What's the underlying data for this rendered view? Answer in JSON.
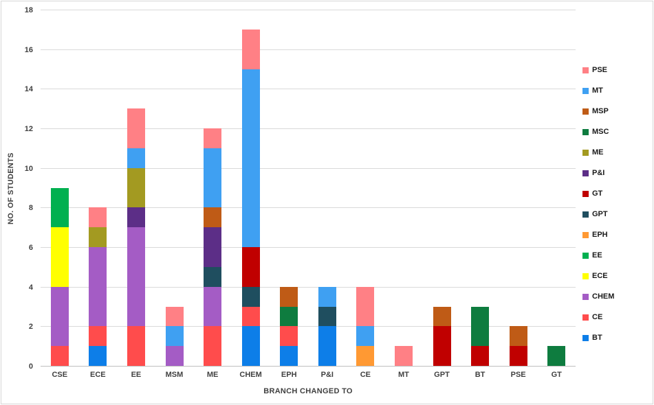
{
  "chart_data": {
    "type": "bar",
    "stacked": true,
    "title": "",
    "xlabel": "BRANCH CHANGED TO",
    "ylabel": "NO. OF STUDENTS",
    "ylim": [
      0,
      18
    ],
    "y_ticks": [
      0,
      2,
      4,
      6,
      8,
      10,
      12,
      14,
      16,
      18
    ],
    "grid": true,
    "legend_position": "right",
    "legend_top_to_bottom": [
      "PSE",
      "MT",
      "MSP",
      "MSC",
      "ME",
      "P&I",
      "GT",
      "GPT",
      "EPH",
      "EE",
      "ECE",
      "CHEM",
      "CE",
      "BT"
    ],
    "categories": [
      "CSE",
      "ECE",
      "EE",
      "MSM",
      "ME",
      "CHEM",
      "EPH",
      "P&I",
      "CE",
      "MT",
      "GPT",
      "BT",
      "PSE",
      "GT"
    ],
    "series": [
      {
        "name": "BT",
        "color": "#0D7EE8",
        "values": [
          0,
          1,
          0,
          0,
          0,
          2,
          1,
          2,
          0,
          0,
          0,
          0,
          0,
          0
        ]
      },
      {
        "name": "CE",
        "color": "#FF4C4C",
        "values": [
          1,
          1,
          2,
          0,
          2,
          1,
          1,
          0,
          0,
          0,
          0,
          0,
          0,
          0
        ]
      },
      {
        "name": "CHEM",
        "color": "#A45CC5",
        "values": [
          3,
          4,
          5,
          1,
          2,
          0,
          0,
          0,
          0,
          0,
          0,
          0,
          0,
          0
        ]
      },
      {
        "name": "ECE",
        "color": "#FFFF00",
        "values": [
          3,
          0,
          0,
          0,
          0,
          0,
          0,
          0,
          0,
          0,
          0,
          0,
          0,
          0
        ]
      },
      {
        "name": "EE",
        "color": "#00B050",
        "values": [
          2,
          0,
          0,
          0,
          0,
          0,
          0,
          0,
          0,
          0,
          0,
          0,
          0,
          0
        ]
      },
      {
        "name": "EPH",
        "color": "#FF9933",
        "values": [
          0,
          0,
          0,
          0,
          0,
          0,
          0,
          0,
          1,
          0,
          0,
          0,
          0,
          0
        ]
      },
      {
        "name": "GPT",
        "color": "#1F4E5F",
        "values": [
          0,
          0,
          0,
          0,
          1,
          1,
          0,
          1,
          0,
          0,
          0,
          0,
          0,
          0
        ]
      },
      {
        "name": "GT",
        "color": "#C00000",
        "values": [
          0,
          0,
          0,
          0,
          0,
          2,
          0,
          0,
          0,
          0,
          2,
          1,
          1,
          0
        ]
      },
      {
        "name": "P&I",
        "color": "#5C2E87",
        "values": [
          0,
          0,
          1,
          0,
          2,
          0,
          0,
          0,
          0,
          0,
          0,
          0,
          0,
          0
        ]
      },
      {
        "name": "ME",
        "color": "#A39A21",
        "values": [
          0,
          1,
          2,
          0,
          0,
          0,
          0,
          0,
          0,
          0,
          0,
          0,
          0,
          0
        ]
      },
      {
        "name": "MSC",
        "color": "#0E7C3F",
        "values": [
          0,
          0,
          0,
          0,
          0,
          0,
          1,
          0,
          0,
          0,
          0,
          2,
          0,
          1
        ]
      },
      {
        "name": "MSP",
        "color": "#BF5B16",
        "values": [
          0,
          0,
          0,
          0,
          1,
          0,
          1,
          0,
          0,
          0,
          1,
          0,
          1,
          0
        ]
      },
      {
        "name": "MT",
        "color": "#3FA0F2",
        "values": [
          0,
          0,
          1,
          1,
          3,
          9,
          0,
          1,
          1,
          0,
          0,
          0,
          0,
          0
        ]
      },
      {
        "name": "PSE",
        "color": "#FF8085",
        "values": [
          0,
          1,
          2,
          1,
          1,
          2,
          0,
          0,
          2,
          1,
          0,
          0,
          0,
          0
        ]
      }
    ]
  },
  "colors": {
    "gridline": "#D9D9D9",
    "axis_line": "#BFBFBF",
    "tick_text": "#404040",
    "border": "#D6D6D6",
    "background": "#FFFFFF"
  }
}
